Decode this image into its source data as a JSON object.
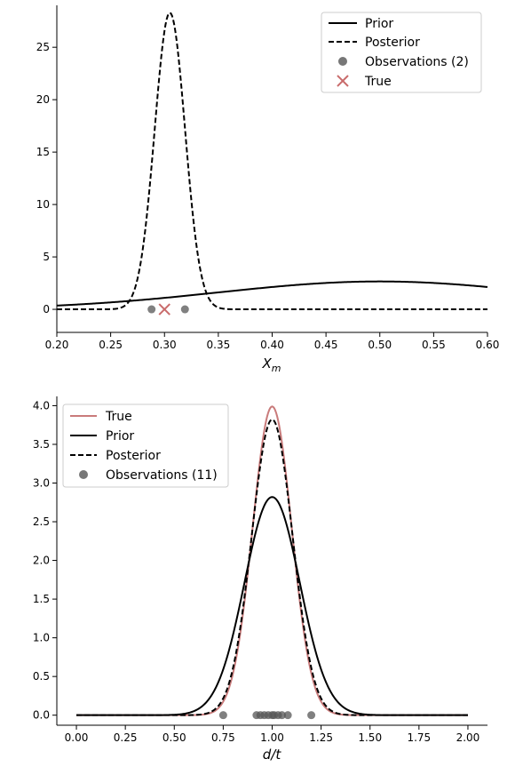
{
  "chart_data": [
    {
      "type": "line",
      "xlabel": "X_m",
      "xlim": [
        0.2,
        0.6
      ],
      "ylim": [
        -2.2,
        29.0
      ],
      "xticks": [
        "0.20",
        "0.25",
        "0.30",
        "0.35",
        "0.40",
        "0.45",
        "0.50",
        "0.55",
        "0.60"
      ],
      "xtick_values": [
        0.2,
        0.25,
        0.3,
        0.35,
        0.4,
        0.45,
        0.5,
        0.55,
        0.6
      ],
      "yticks": [
        "0",
        "5",
        "10",
        "15",
        "20",
        "25"
      ],
      "ytick_values": [
        0,
        5,
        10,
        15,
        20,
        25
      ],
      "legend_position": "top-right",
      "series": [
        {
          "name": "Prior",
          "style": "solid",
          "color": "#000000",
          "kind": "normal",
          "mean": 0.5,
          "sd": 0.15
        },
        {
          "name": "Posterior",
          "style": "dashed",
          "color": "#000000",
          "kind": "normal",
          "mean": 0.305,
          "sd": 0.0141
        }
      ],
      "observations": {
        "name": "Observations (2)",
        "color": "#555555",
        "x": [
          0.288,
          0.319
        ],
        "y": [
          0,
          0
        ]
      },
      "true_marker": {
        "name": "True",
        "color": "#c96b6b",
        "x": 0.3,
        "y": 0
      }
    },
    {
      "type": "line",
      "xlabel": "d/t",
      "xlim": [
        -0.1,
        2.1
      ],
      "ylim": [
        -0.13,
        4.12
      ],
      "xticks": [
        "0.00",
        "0.25",
        "0.50",
        "0.75",
        "1.00",
        "1.25",
        "1.50",
        "1.75",
        "2.00"
      ],
      "xtick_values": [
        0.0,
        0.25,
        0.5,
        0.75,
        1.0,
        1.25,
        1.5,
        1.75,
        2.0
      ],
      "yticks": [
        "0.0",
        "0.5",
        "1.0",
        "1.5",
        "2.0",
        "2.5",
        "3.0",
        "3.5",
        "4.0"
      ],
      "ytick_values": [
        0.0,
        0.5,
        1.0,
        1.5,
        2.0,
        2.5,
        3.0,
        3.5,
        4.0
      ],
      "legend_position": "top-left",
      "series": [
        {
          "name": "True",
          "style": "solid",
          "color": "#c97b7b",
          "kind": "normal",
          "mean": 1.0,
          "sd": 0.1,
          "xrange": [
            0.0,
            2.0
          ]
        },
        {
          "name": "Prior",
          "style": "solid",
          "color": "#000000",
          "kind": "normal",
          "mean": 1.0,
          "sd": 0.1415,
          "xrange": [
            0.0,
            2.0
          ]
        },
        {
          "name": "Posterior",
          "style": "dashed",
          "color": "#000000",
          "kind": "normal",
          "mean": 1.0,
          "sd": 0.1044,
          "xrange": [
            0.0,
            2.0
          ]
        }
      ],
      "observations": {
        "name": "Observations (11)",
        "color": "#555555",
        "x": [
          0.75,
          0.92,
          0.94,
          0.96,
          0.98,
          1.0,
          1.01,
          1.03,
          1.05,
          1.08,
          1.2
        ],
        "y": [
          0,
          0,
          0,
          0,
          0,
          0,
          0,
          0,
          0,
          0,
          0
        ]
      }
    }
  ]
}
